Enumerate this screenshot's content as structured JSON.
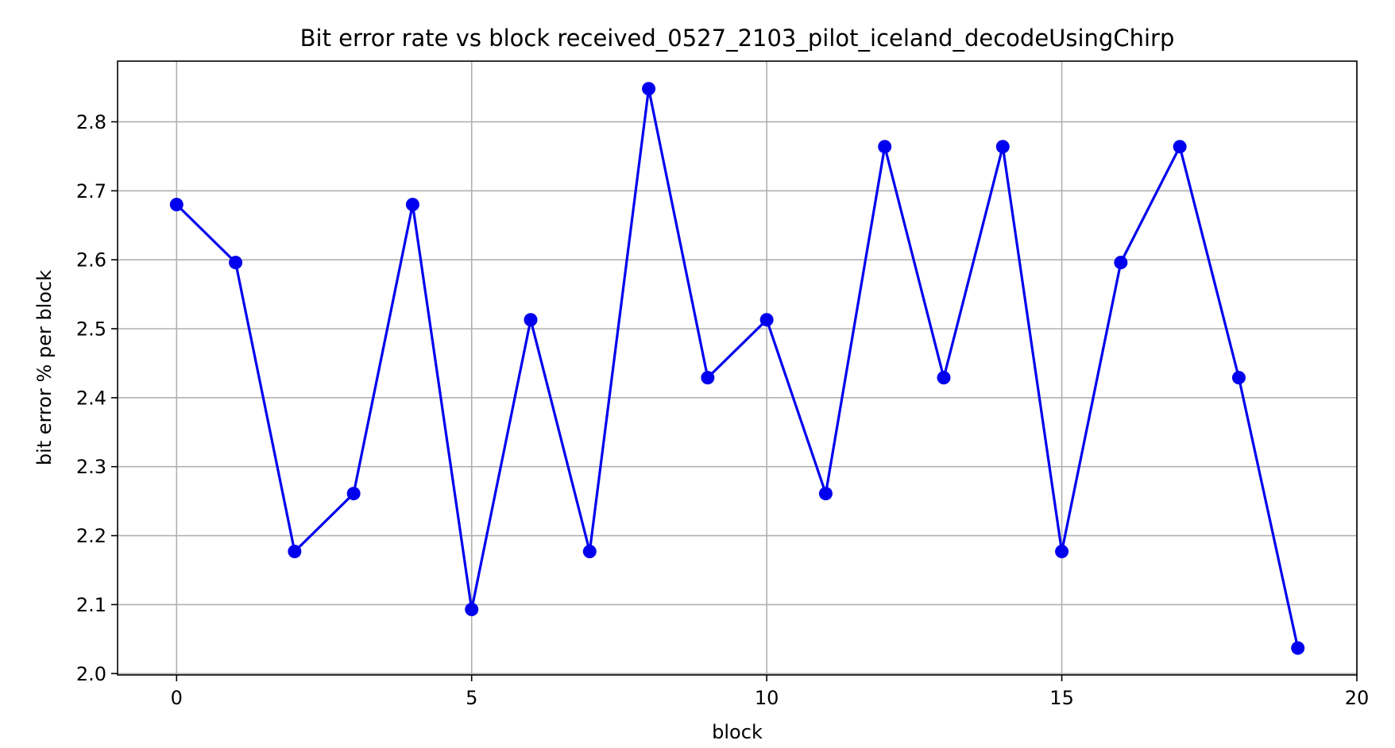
{
  "chart_data": {
    "type": "line",
    "title": "Bit error rate vs block received_0527_2103_pilot_iceland_decodeUsingChirp",
    "xlabel": "block",
    "ylabel": "bit error % per block",
    "xlim": [
      -1,
      20
    ],
    "ylim": [
      1.998,
      2.888
    ],
    "x_ticks": [
      0,
      5,
      10,
      15,
      20
    ],
    "y_ticks": [
      2.0,
      2.1,
      2.2,
      2.3,
      2.4,
      2.5,
      2.6,
      2.7,
      2.8
    ],
    "y_tick_labels": [
      "2.0",
      "2.1",
      "2.2",
      "2.3",
      "2.4",
      "2.5",
      "2.6",
      "2.7",
      "2.8"
    ],
    "grid": true,
    "legend": "none",
    "series": [
      {
        "color": "#0000ee",
        "marker": "circle",
        "x": [
          0,
          1,
          2,
          3,
          4,
          5,
          6,
          7,
          8,
          9,
          10,
          11,
          12,
          13,
          14,
          15,
          16,
          17,
          18,
          19
        ],
        "y": [
          2.68,
          2.596,
          2.177,
          2.261,
          2.68,
          2.093,
          2.513,
          2.177,
          2.848,
          2.429,
          2.513,
          2.261,
          2.764,
          2.429,
          2.764,
          2.177,
          2.596,
          2.764,
          2.429,
          2.037
        ]
      }
    ]
  }
}
